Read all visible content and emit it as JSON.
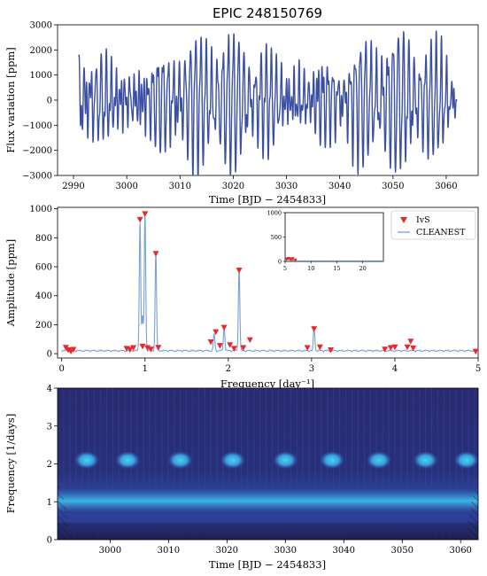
{
  "figure": {
    "title": "EPIC 248150769"
  },
  "colors": {
    "lightcurve": "#3b4fa3",
    "ivs_marker": "#e8292b",
    "cleanest_line": "#7a9fd1",
    "axis": "#000000"
  },
  "chart_data": [
    {
      "type": "line",
      "panel": "light-curve",
      "title": "EPIC 248150769",
      "xlabel": "Time [BJD − 2454833]",
      "ylabel": "Flux variation [ppm]",
      "xlim": [
        2987,
        3066
      ],
      "ylim": [
        -3000,
        3000
      ],
      "xticks": [
        2990,
        3000,
        3010,
        3020,
        3030,
        3040,
        3050,
        3060
      ],
      "yticks": [
        -3000,
        -2000,
        -1000,
        0,
        1000,
        2000,
        3000
      ],
      "series": [
        {
          "x_range": [
            2991,
            3062
          ],
          "components": [
            {
              "frequency_per_day": 0.97,
              "amplitude_ppm": 930
            },
            {
              "frequency_per_day": 1.0,
              "amplitude_ppm": 970
            },
            {
              "frequency_per_day": 1.13,
              "amplitude_ppm": 700
            },
            {
              "frequency_per_day": 2.13,
              "amplitude_ppm": 580
            },
            {
              "frequency_per_day": 1.83,
              "amplitude_ppm": 120
            },
            {
              "frequency_per_day": 1.95,
              "amplitude_ppm": 170
            },
            {
              "frequency_per_day": 3.03,
              "amplitude_ppm": 170
            }
          ]
        }
      ]
    },
    {
      "type": "scatter",
      "panel": "periodogram",
      "xlabel": "Frequency [day⁻¹]",
      "ylabel": "Amplitude [ppm]",
      "xlim": [
        -0.05,
        5
      ],
      "ylim": [
        -30,
        1010
      ],
      "xticks": [
        0,
        1,
        2,
        3,
        4,
        5
      ],
      "yticks": [
        0,
        200,
        400,
        600,
        800,
        1000
      ],
      "legend": {
        "placement": "top-right",
        "entries": [
          "IvS",
          "CLEANEST"
        ]
      },
      "series": [
        {
          "name": "IvS",
          "marker": "triangle-down",
          "points": [
            [
              0.05,
              42
            ],
            [
              0.08,
              25
            ],
            [
              0.11,
              15
            ],
            [
              0.14,
              28
            ],
            [
              0.78,
              35
            ],
            [
              0.82,
              28
            ],
            [
              0.86,
              40
            ],
            [
              0.94,
              925
            ],
            [
              0.97,
              50
            ],
            [
              1.0,
              965
            ],
            [
              1.03,
              40
            ],
            [
              1.07,
              30
            ],
            [
              1.13,
              690
            ],
            [
              1.16,
              42
            ],
            [
              1.79,
              80
            ],
            [
              1.85,
              150
            ],
            [
              1.9,
              55
            ],
            [
              1.95,
              180
            ],
            [
              2.02,
              60
            ],
            [
              2.07,
              35
            ],
            [
              2.13,
              575
            ],
            [
              2.18,
              40
            ],
            [
              2.26,
              95
            ],
            [
              2.95,
              40
            ],
            [
              3.03,
              170
            ],
            [
              3.1,
              45
            ],
            [
              3.23,
              25
            ],
            [
              3.88,
              30
            ],
            [
              3.95,
              40
            ],
            [
              4.0,
              45
            ],
            [
              4.15,
              45
            ],
            [
              4.19,
              85
            ],
            [
              4.22,
              38
            ],
            [
              4.97,
              15
            ]
          ]
        },
        {
          "name": "CLEANEST",
          "style": "line",
          "peaks": [
            [
              0.94,
              900
            ],
            [
              0.97,
              240
            ],
            [
              1.0,
              960
            ],
            [
              1.13,
              680
            ],
            [
              1.83,
              120
            ],
            [
              1.95,
              170
            ],
            [
              2.13,
              580
            ],
            [
              3.03,
              170
            ]
          ]
        }
      ],
      "inset": {
        "xlim": [
          5,
          24
        ],
        "ylim": [
          0,
          1000
        ],
        "xticks": [
          5,
          10,
          15,
          20
        ],
        "yticks": [
          0,
          500,
          1000
        ],
        "ivs_points": [
          [
            5.3,
            40
          ],
          [
            5.6,
            55
          ],
          [
            5.9,
            45
          ],
          [
            6.2,
            35
          ],
          [
            6.5,
            50
          ],
          [
            7.0,
            20
          ]
        ]
      }
    },
    {
      "type": "heatmap",
      "panel": "wavelet",
      "xlabel": "Time [BJD − 2454833]",
      "ylabel": "Frequency [1/days]",
      "xlim": [
        2991,
        3063
      ],
      "ylim": [
        0,
        4
      ],
      "xticks": [
        3000,
        3010,
        3020,
        3030,
        3040,
        3050,
        3060
      ],
      "yticks": [
        0,
        1,
        2,
        3,
        4
      ],
      "colormap": [
        "#24205e",
        "#3f63c4",
        "#3bc3e6",
        "#8ae14a",
        "#f0e13a",
        "#e8291e"
      ],
      "bands": [
        {
          "frequency_per_day": 1.0,
          "hotspots_time": [
            3003,
            3020,
            3036,
            3052
          ],
          "peak_level": 1.0
        },
        {
          "frequency_per_day": 2.1,
          "blob_times": [
            2996,
            3003,
            3012,
            3021,
            3030,
            3038,
            3046,
            3054,
            3061
          ],
          "peak_level": 0.45
        }
      ]
    }
  ]
}
